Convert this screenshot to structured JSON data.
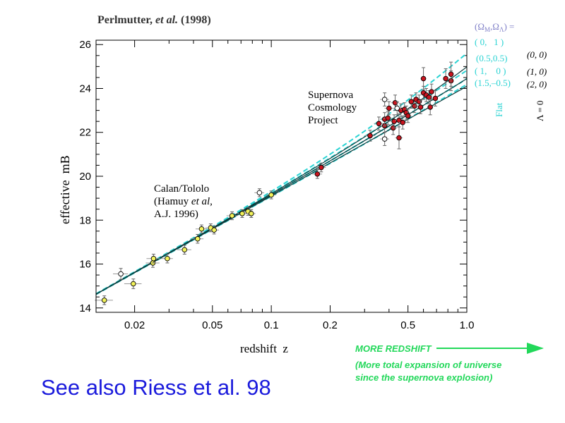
{
  "title_text": {
    "author": "Perlmutter, ",
    "etal": "et al.",
    "year": " (1998)"
  },
  "footer": {
    "see_also": "See also Riess et al. 98",
    "arrow_line1": "MORE REDSHIFT",
    "arrow_line2": "(More total expansion of universe",
    "arrow_line3": "since the supernova explosion)"
  },
  "annotations": {
    "scp": [
      "Supernova",
      "Cosmology",
      "Project"
    ],
    "calan_line1": "Calan/Tololo",
    "calan_line2a": "(Hamuy ",
    "calan_line2b": "et al",
    "calan_line2c": ",",
    "calan_line3": "A.J. 1996)"
  },
  "legend": {
    "header": "(ΩM,ΩΛ) =",
    "rows": [
      {
        "label": "( 0,   1 )",
        "color": "#2ad3d3"
      },
      {
        "label": "(0.5,0.5)",
        "color": "#2ad3d3"
      },
      {
        "label": "( 1,    0 )",
        "color": "#2ad3d3"
      },
      {
        "label": "(1.5,–0.5)",
        "color": "#2ad3d3"
      }
    ],
    "right_rows": [
      "(0, 0)",
      "(1, 0)",
      "(2, 0)"
    ],
    "flat_label": "Flat",
    "lambda_label": "Λ = 0"
  },
  "colors": {
    "axis": "#000000",
    "cyan": "#2ad3d3",
    "dark_teal": "#0a3a3a",
    "red_point": "#c8141e",
    "yellow_point": "#f3f35a",
    "blue_text": "#1a1adc",
    "green_text": "#22d85a",
    "legend_header": "#8080c8"
  },
  "chart_data": {
    "type": "scatter",
    "xscale": "log",
    "xlabel": "redshift  z",
    "ylabel": "effective  mB",
    "xlim": [
      0.0127,
      1.0
    ],
    "ylim": [
      13.8,
      26.2
    ],
    "xticks": [
      0.02,
      0.05,
      0.1,
      0.2,
      0.5,
      1.0
    ],
    "xtick_labels": [
      "0.02",
      "0.05",
      "0.1",
      "0.2",
      "0.5",
      "1.0"
    ],
    "yticks": [
      14,
      16,
      18,
      20,
      22,
      24,
      26
    ],
    "ytick_labels": [
      "14",
      "16",
      "18",
      "20",
      "22",
      "24",
      "26"
    ],
    "models": [
      {
        "omega_m": 0,
        "omega_l": 1,
        "style": "dashed",
        "color": "#2ad3d3"
      },
      {
        "omega_m": 0.5,
        "omega_l": 0.5,
        "style": "dashed",
        "color": "#2ad3d3"
      },
      {
        "omega_m": 1,
        "omega_l": 0,
        "style": "dashed",
        "color": "#2ad3d3"
      },
      {
        "omega_m": 1.5,
        "omega_l": -0.5,
        "style": "dashed",
        "color": "#2ad3d3"
      },
      {
        "omega_m": 0,
        "omega_l": 0,
        "style": "solid",
        "color": "#0a3a3a"
      },
      {
        "omega_m": 1,
        "omega_l": 0,
        "style": "solid",
        "color": "#0a3a3a"
      },
      {
        "omega_m": 2,
        "omega_l": 0,
        "style": "solid",
        "color": "#0a3a3a"
      }
    ],
    "series": [
      {
        "group": "calan_tololo",
        "fill": "#f3f35a",
        "points": [
          [
            0.014,
            14.35,
            0.2,
            0.0015
          ],
          [
            0.0197,
            15.1,
            0.22,
            0.002
          ],
          [
            0.0248,
            16.05,
            0.2,
            0.002
          ],
          [
            0.025,
            16.25,
            0.2,
            0.002
          ],
          [
            0.0294,
            16.25,
            0.2,
            0.002
          ],
          [
            0.036,
            16.65,
            0.2,
            0.003
          ],
          [
            0.042,
            17.15,
            0.2,
            0.003
          ],
          [
            0.044,
            17.6,
            0.18,
            0.003
          ],
          [
            0.049,
            17.65,
            0.18,
            0.003
          ],
          [
            0.051,
            17.55,
            0.18,
            0.003
          ],
          [
            0.063,
            18.2,
            0.18,
            0.004
          ],
          [
            0.071,
            18.3,
            0.18,
            0.004
          ],
          [
            0.076,
            18.4,
            0.18,
            0.004
          ],
          [
            0.079,
            18.3,
            0.18,
            0.004
          ],
          [
            0.1,
            19.15,
            0.18,
            0.006
          ]
        ]
      },
      {
        "group": "calan_tololo_open",
        "fill": "#ffffff",
        "points": [
          [
            0.017,
            15.55,
            0.25,
            0.0015
          ],
          [
            0.087,
            19.25,
            0.18,
            0.005
          ]
        ]
      },
      {
        "group": "scp",
        "fill": "#c8141e",
        "points": [
          [
            0.172,
            20.1,
            0.2,
            0.01
          ],
          [
            0.18,
            20.4,
            0.2,
            0.01
          ],
          [
            0.32,
            21.85,
            0.25,
            0.02
          ],
          [
            0.355,
            22.4,
            0.3,
            0.02
          ],
          [
            0.38,
            22.3,
            0.3,
            0.02
          ],
          [
            0.38,
            22.6,
            0.3,
            0.02
          ],
          [
            0.395,
            22.65,
            0.3,
            0.02
          ],
          [
            0.4,
            23.1,
            0.3,
            0.02
          ],
          [
            0.42,
            22.2,
            0.3,
            0.02
          ],
          [
            0.425,
            22.5,
            0.3,
            0.02
          ],
          [
            0.43,
            23.35,
            0.35,
            0.02
          ],
          [
            0.45,
            21.75,
            0.5,
            0.02
          ],
          [
            0.45,
            22.55,
            0.3,
            0.02
          ],
          [
            0.46,
            23.0,
            0.3,
            0.02
          ],
          [
            0.47,
            22.45,
            0.3,
            0.02
          ],
          [
            0.48,
            23.05,
            0.3,
            0.02
          ],
          [
            0.49,
            22.9,
            0.3,
            0.02
          ],
          [
            0.5,
            22.75,
            0.3,
            0.02
          ],
          [
            0.52,
            23.4,
            0.3,
            0.02
          ],
          [
            0.54,
            23.2,
            0.3,
            0.02
          ],
          [
            0.55,
            23.5,
            0.3,
            0.02
          ],
          [
            0.57,
            23.4,
            0.3,
            0.02
          ],
          [
            0.58,
            23.15,
            0.3,
            0.02
          ],
          [
            0.6,
            23.8,
            0.3,
            0.02
          ],
          [
            0.6,
            24.45,
            0.5,
            0.02
          ],
          [
            0.62,
            23.7,
            0.3,
            0.02
          ],
          [
            0.64,
            23.6,
            0.3,
            0.02
          ],
          [
            0.65,
            23.15,
            0.35,
            0.02
          ],
          [
            0.66,
            23.85,
            0.35,
            0.02
          ],
          [
            0.69,
            23.55,
            0.35,
            0.02
          ],
          [
            0.78,
            24.45,
            0.45,
            0.02
          ],
          [
            0.83,
            24.35,
            0.45,
            0.02
          ],
          [
            0.83,
            24.65,
            0.55,
            0.02
          ]
        ]
      },
      {
        "group": "scp_open",
        "fill": "#ffffff",
        "points": [
          [
            0.38,
            23.5,
            0.3,
            0.02
          ],
          [
            0.38,
            21.7,
            0.3,
            0.02
          ],
          [
            0.44,
            23.1,
            0.3,
            0.02
          ]
        ]
      }
    ]
  }
}
